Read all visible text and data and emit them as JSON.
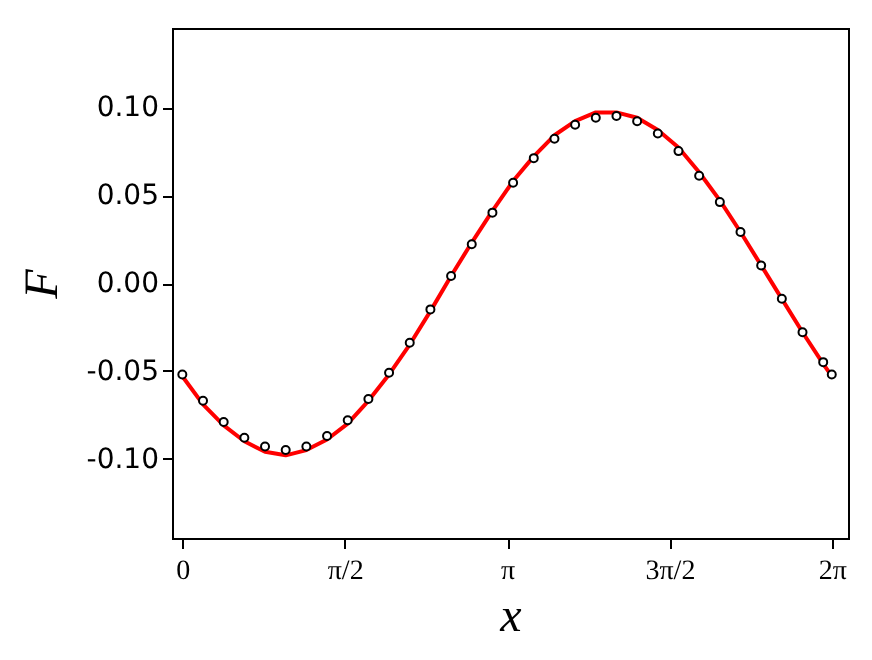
{
  "chart_data": {
    "type": "line",
    "xlabel": "x",
    "ylabel": "F",
    "x": [
      0,
      0.2,
      0.4,
      0.6,
      0.8,
      1.0,
      1.2,
      1.4,
      1.6,
      1.8,
      2.0,
      2.2,
      2.4,
      2.6,
      2.8,
      3.0,
      3.2,
      3.4,
      3.6,
      3.8,
      4.0,
      4.2,
      4.4,
      4.6,
      4.8,
      5.0,
      5.2,
      5.4,
      5.6,
      5.8,
      6.0,
      6.2,
      6.283
    ],
    "series": [
      {
        "color": "#ff0000",
        "marker": "none",
        "line_style": "solid",
        "values": [
          -0.053,
          -0.069,
          -0.081,
          -0.09,
          -0.096,
          -0.098,
          -0.095,
          -0.089,
          -0.08,
          -0.067,
          -0.052,
          -0.035,
          -0.016,
          0.004,
          0.023,
          0.041,
          0.058,
          0.072,
          0.084,
          0.092,
          0.097,
          0.097,
          0.094,
          0.087,
          0.077,
          0.063,
          0.047,
          0.029,
          0.01,
          -0.009,
          -0.028,
          -0.046,
          -0.053
        ]
      },
      {
        "type": "scatter",
        "color": "#000000",
        "marker": "circle",
        "values": [
          -0.052,
          -0.067,
          -0.079,
          -0.088,
          -0.093,
          -0.095,
          -0.093,
          -0.087,
          -0.078,
          -0.066,
          -0.051,
          -0.034,
          -0.015,
          0.004,
          0.022,
          0.04,
          0.057,
          0.071,
          0.082,
          0.09,
          0.094,
          0.095,
          0.092,
          0.085,
          0.075,
          0.061,
          0.046,
          0.029,
          0.01,
          -0.009,
          -0.028,
          -0.045,
          -0.052
        ]
      }
    ],
    "xlim": [
      -0.1,
      6.44
    ],
    "ylim": [
      -0.145,
      0.145
    ],
    "xticks": [
      {
        "value": 0,
        "label": "0"
      },
      {
        "value": 1.5708,
        "label": "π/2"
      },
      {
        "value": 3.1416,
        "label": "π"
      },
      {
        "value": 4.7124,
        "label": "3π/2"
      },
      {
        "value": 6.2832,
        "label": "2π"
      }
    ],
    "yticks": [
      {
        "value": -0.1,
        "label": "-0.10"
      },
      {
        "value": -0.05,
        "label": "-0.05"
      },
      {
        "value": 0,
        "label": "0.00"
      },
      {
        "value": 0.05,
        "label": "0.05"
      },
      {
        "value": 0.1,
        "label": "0.10"
      }
    ],
    "grid": false
  }
}
